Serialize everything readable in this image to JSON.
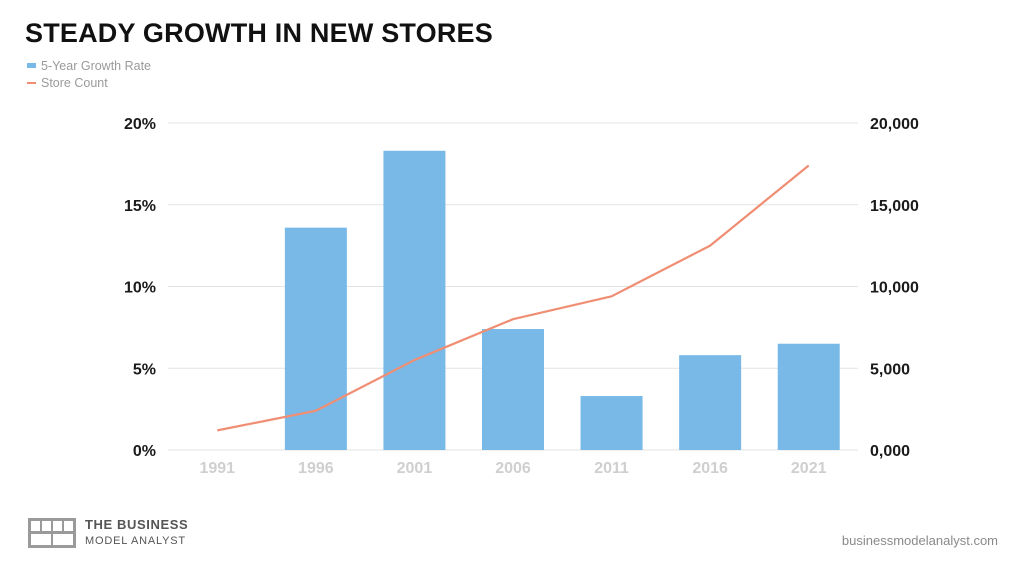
{
  "colors": {
    "bar": "#78b9e7",
    "line": "#f08e74",
    "grid": "#e3e3e3",
    "axis_text": "#1a1a1a",
    "x_tick_text": "#cfcfcf"
  },
  "chart_data": {
    "type": "bar",
    "title": "STEADY GROWTH IN NEW STORES",
    "categories": [
      "1991",
      "1996",
      "2001",
      "2006",
      "2011",
      "2016",
      "2021"
    ],
    "series": [
      {
        "name": "5-Year Growth Rate",
        "type": "bar",
        "axis": "left",
        "values": [
          0,
          13.6,
          18.3,
          7.4,
          3.3,
          5.8,
          6.5
        ]
      },
      {
        "name": "Store Count",
        "type": "line",
        "axis": "right",
        "values": [
          1200,
          2400,
          5500,
          8000,
          9400,
          12500,
          17400
        ]
      }
    ],
    "y_left": {
      "ylim": [
        0,
        20
      ],
      "ticks": [
        "0%",
        "5%",
        "10%",
        "15%",
        "20%"
      ]
    },
    "y_right": {
      "ylim": [
        0,
        20000
      ],
      "ticks": [
        "0,000",
        "5,000",
        "10,000",
        "15,000",
        "20,000"
      ]
    },
    "grid": true,
    "legend_position": "top-left"
  },
  "footer": {
    "brand_line1": "THE BUSINESS",
    "brand_line2": "MODEL ANALYST",
    "website": "businessmodelanalyst.com"
  }
}
